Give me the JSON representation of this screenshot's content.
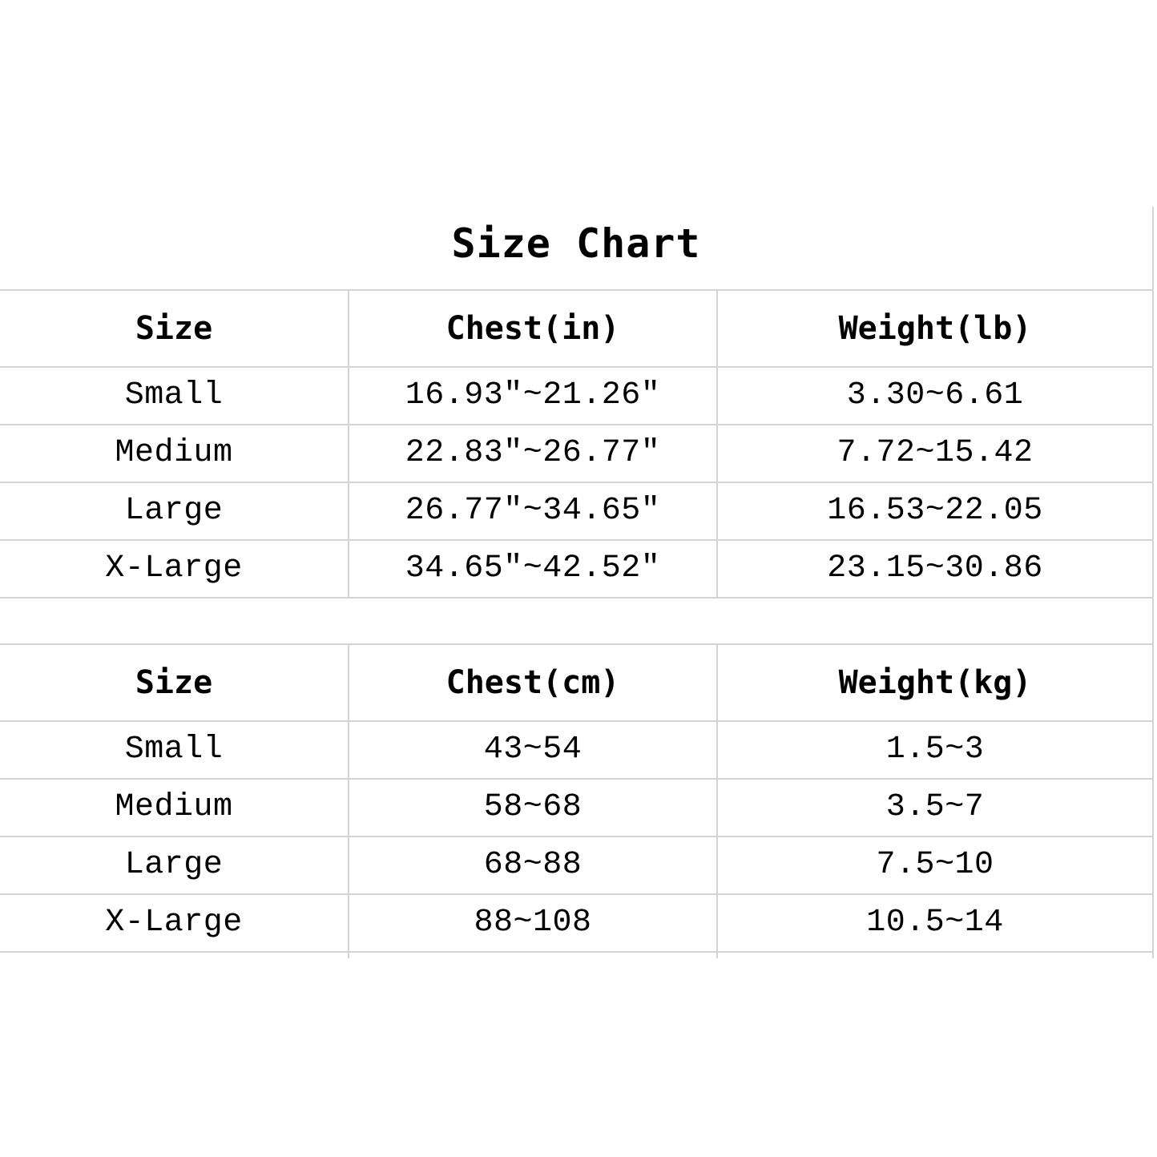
{
  "title": "Size Chart",
  "tables": [
    {
      "headers": [
        "Size",
        "Chest(in)",
        "Weight(lb)"
      ],
      "rows": [
        [
          "Small",
          "16.93″~21.26″",
          "3.30~6.61"
        ],
        [
          "Medium",
          "22.83″~26.77″",
          "7.72~15.42"
        ],
        [
          "Large",
          "26.77″~34.65″",
          "16.53~22.05"
        ],
        [
          "X-Large",
          "34.65″~42.52″",
          "23.15~30.86"
        ]
      ]
    },
    {
      "headers": [
        "Size",
        "Chest(cm)",
        "Weight(kg)"
      ],
      "rows": [
        [
          "Small",
          "43~54",
          "1.5~3"
        ],
        [
          "Medium",
          "58~68",
          "3.5~7"
        ],
        [
          "Large",
          "68~88",
          "7.5~10"
        ],
        [
          "X-Large",
          "88~108",
          "10.5~14"
        ]
      ]
    }
  ]
}
